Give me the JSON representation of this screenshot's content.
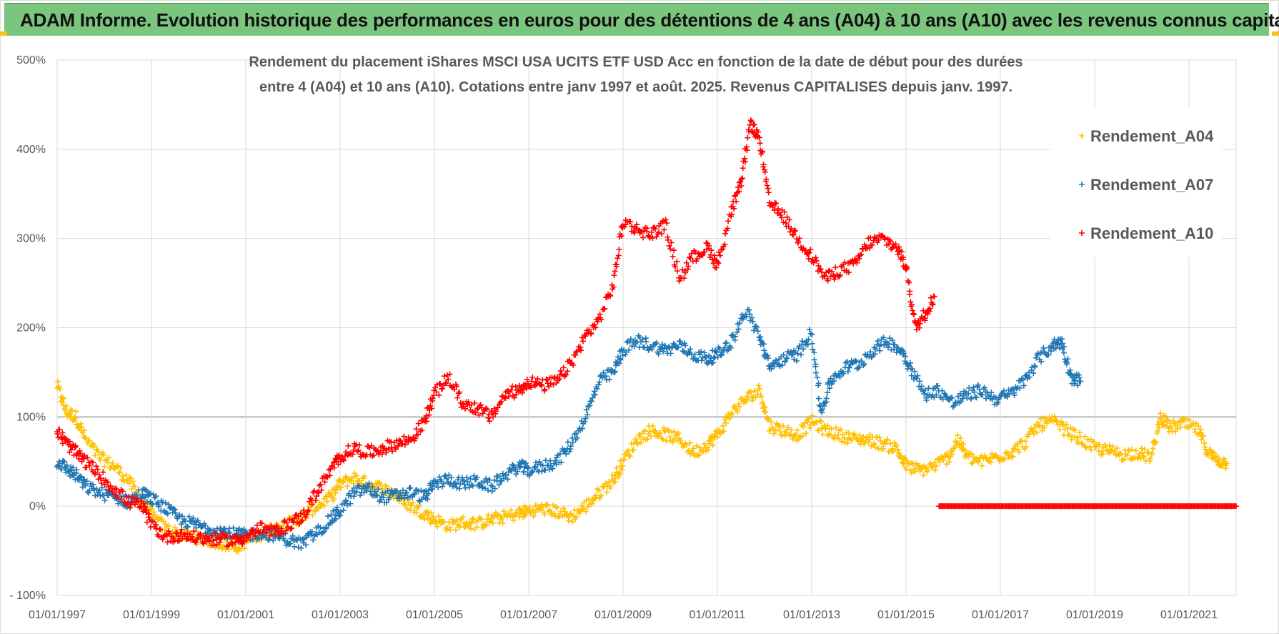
{
  "header": {
    "banner_title": "ADAM Informe. Evolution historique des performances en euros pour des détentions de 4 ans (A04) à 10 ans (A10) avec les revenus connus capitalisés"
  },
  "chart_data": {
    "type": "scatter",
    "title_lines": [
      "Rendement du placement iShares MSCI USA UCITS ETF USD Acc en fonction de la date de début pour des durées",
      "entre 4 (A04) et 10 ans (A10).  Cotations entre janv 1997 et août. 2025. Revenus CAPITALISES depuis janv. 1997."
    ],
    "xlabel": "",
    "ylabel": "",
    "x_ticks": [
      "01/01/1997",
      "01/01/1999",
      "01/01/2001",
      "01/01/2003",
      "01/01/2005",
      "01/01/2007",
      "01/01/2009",
      "01/01/2011",
      "01/01/2013",
      "01/01/2015",
      "01/01/2017",
      "01/01/2019",
      "01/01/2021"
    ],
    "y_ticks": [
      "- 100%",
      "0%",
      "100%",
      "200%",
      "300%",
      "400%",
      "500%"
    ],
    "xlim": [
      1997.0,
      2022.0
    ],
    "ylim": [
      -100,
      500
    ],
    "grid": true,
    "legend_position": "right",
    "marker": "+",
    "series": [
      {
        "name": "Rendement_A04",
        "color": "#ffc000",
        "points": [
          [
            1997.0,
            135
          ],
          [
            1997.2,
            105
          ],
          [
            1997.4,
            100
          ],
          [
            1997.6,
            75
          ],
          [
            1997.9,
            55
          ],
          [
            1998.2,
            45
          ],
          [
            1998.5,
            30
          ],
          [
            1998.8,
            5
          ],
          [
            1999.0,
            -10
          ],
          [
            1999.3,
            -25
          ],
          [
            1999.6,
            -32
          ],
          [
            1999.9,
            -35
          ],
          [
            2000.2,
            -38
          ],
          [
            2000.5,
            -42
          ],
          [
            2000.8,
            -45
          ],
          [
            2001.0,
            -40
          ],
          [
            2001.3,
            -32
          ],
          [
            2001.6,
            -25
          ],
          [
            2001.9,
            -20
          ],
          [
            2002.2,
            -12
          ],
          [
            2002.5,
            0
          ],
          [
            2002.8,
            10
          ],
          [
            2003.0,
            25
          ],
          [
            2003.3,
            32
          ],
          [
            2003.6,
            25
          ],
          [
            2003.9,
            20
          ],
          [
            2004.2,
            12
          ],
          [
            2004.5,
            0
          ],
          [
            2004.8,
            -8
          ],
          [
            2005.0,
            -15
          ],
          [
            2005.3,
            -22
          ],
          [
            2005.6,
            -18
          ],
          [
            2005.9,
            -20
          ],
          [
            2006.2,
            -15
          ],
          [
            2006.5,
            -12
          ],
          [
            2006.8,
            -8
          ],
          [
            2007.0,
            -5
          ],
          [
            2007.3,
            -3
          ],
          [
            2007.6,
            -6
          ],
          [
            2007.9,
            -12
          ],
          [
            2008.2,
            0
          ],
          [
            2008.5,
            15
          ],
          [
            2008.8,
            30
          ],
          [
            2009.0,
            50
          ],
          [
            2009.3,
            75
          ],
          [
            2009.6,
            85
          ],
          [
            2009.9,
            80
          ],
          [
            2010.2,
            75
          ],
          [
            2010.5,
            60
          ],
          [
            2010.8,
            70
          ],
          [
            2011.0,
            80
          ],
          [
            2011.3,
            105
          ],
          [
            2011.6,
            120
          ],
          [
            2011.9,
            130
          ],
          [
            2012.1,
            90
          ],
          [
            2012.4,
            85
          ],
          [
            2012.7,
            80
          ],
          [
            2013.0,
            95
          ],
          [
            2013.3,
            85
          ],
          [
            2013.6,
            80
          ],
          [
            2013.9,
            75
          ],
          [
            2014.2,
            75
          ],
          [
            2014.5,
            70
          ],
          [
            2014.8,
            65
          ],
          [
            2015.0,
            45
          ],
          [
            2015.3,
            40
          ],
          [
            2015.6,
            45
          ],
          [
            2015.9,
            55
          ],
          [
            2016.1,
            75
          ],
          [
            2016.3,
            55
          ],
          [
            2016.6,
            50
          ],
          [
            2016.9,
            55
          ],
          [
            2017.2,
            60
          ],
          [
            2017.5,
            70
          ],
          [
            2017.8,
            90
          ],
          [
            2018.1,
            95
          ],
          [
            2018.4,
            85
          ],
          [
            2018.7,
            75
          ],
          [
            2019.0,
            65
          ],
          [
            2019.3,
            62
          ],
          [
            2019.6,
            58
          ],
          [
            2019.9,
            60
          ],
          [
            2020.2,
            55
          ],
          [
            2020.4,
            100
          ],
          [
            2020.6,
            88
          ],
          [
            2020.9,
            92
          ],
          [
            2021.2,
            85
          ],
          [
            2021.4,
            60
          ],
          [
            2021.6,
            52
          ],
          [
            2021.8,
            48
          ]
        ]
      },
      {
        "name": "Rendement_A07",
        "color": "#1f77b4",
        "points": [
          [
            1997.0,
            50
          ],
          [
            1997.2,
            42
          ],
          [
            1997.4,
            35
          ],
          [
            1997.6,
            22
          ],
          [
            1997.9,
            15
          ],
          [
            1998.2,
            10
          ],
          [
            1998.5,
            5
          ],
          [
            1998.8,
            15
          ],
          [
            1999.0,
            8
          ],
          [
            1999.3,
            -2
          ],
          [
            1999.6,
            -15
          ],
          [
            1999.9,
            -20
          ],
          [
            2000.2,
            -25
          ],
          [
            2000.5,
            -28
          ],
          [
            2000.8,
            -32
          ],
          [
            2001.0,
            -33
          ],
          [
            2001.3,
            -30
          ],
          [
            2001.6,
            -32
          ],
          [
            2001.9,
            -38
          ],
          [
            2002.2,
            -42
          ],
          [
            2002.5,
            -30
          ],
          [
            2002.8,
            -15
          ],
          [
            2003.0,
            -5
          ],
          [
            2003.3,
            15
          ],
          [
            2003.6,
            20
          ],
          [
            2003.9,
            10
          ],
          [
            2004.2,
            12
          ],
          [
            2004.5,
            15
          ],
          [
            2004.8,
            10
          ],
          [
            2005.0,
            25
          ],
          [
            2005.3,
            30
          ],
          [
            2005.6,
            25
          ],
          [
            2005.9,
            28
          ],
          [
            2006.2,
            22
          ],
          [
            2006.5,
            35
          ],
          [
            2006.8,
            45
          ],
          [
            2007.0,
            40
          ],
          [
            2007.3,
            45
          ],
          [
            2007.6,
            50
          ],
          [
            2007.9,
            70
          ],
          [
            2008.2,
            100
          ],
          [
            2008.5,
            140
          ],
          [
            2008.8,
            150
          ],
          [
            2009.0,
            175
          ],
          [
            2009.3,
            185
          ],
          [
            2009.6,
            180
          ],
          [
            2009.9,
            175
          ],
          [
            2010.2,
            180
          ],
          [
            2010.5,
            170
          ],
          [
            2010.8,
            165
          ],
          [
            2011.0,
            170
          ],
          [
            2011.3,
            185
          ],
          [
            2011.6,
            220
          ],
          [
            2011.9,
            190
          ],
          [
            2012.1,
            155
          ],
          [
            2012.4,
            165
          ],
          [
            2012.7,
            170
          ],
          [
            2013.0,
            195
          ],
          [
            2013.2,
            105
          ],
          [
            2013.4,
            140
          ],
          [
            2013.7,
            155
          ],
          [
            2014.0,
            160
          ],
          [
            2014.3,
            175
          ],
          [
            2014.6,
            185
          ],
          [
            2014.9,
            175
          ],
          [
            2015.1,
            155
          ],
          [
            2015.4,
            125
          ],
          [
            2015.7,
            130
          ],
          [
            2016.0,
            115
          ],
          [
            2016.3,
            125
          ],
          [
            2016.6,
            130
          ],
          [
            2016.9,
            120
          ],
          [
            2017.2,
            125
          ],
          [
            2017.5,
            140
          ],
          [
            2017.8,
            165
          ],
          [
            2018.1,
            180
          ],
          [
            2018.3,
            185
          ],
          [
            2018.5,
            145
          ],
          [
            2018.7,
            140
          ]
        ]
      },
      {
        "name": "Rendement_A10",
        "color": "#ff0000",
        "points": [
          [
            1997.0,
            85
          ],
          [
            1997.2,
            70
          ],
          [
            1997.4,
            60
          ],
          [
            1997.6,
            50
          ],
          [
            1997.9,
            35
          ],
          [
            1998.2,
            20
          ],
          [
            1998.5,
            5
          ],
          [
            1998.8,
            0
          ],
          [
            1999.0,
            -20
          ],
          [
            1999.3,
            -35
          ],
          [
            1999.6,
            -32
          ],
          [
            1999.9,
            -35
          ],
          [
            2000.2,
            -37
          ],
          [
            2000.5,
            -38
          ],
          [
            2000.8,
            -38
          ],
          [
            2001.0,
            -35
          ],
          [
            2001.3,
            -25
          ],
          [
            2001.6,
            -30
          ],
          [
            2001.9,
            -20
          ],
          [
            2002.2,
            -12
          ],
          [
            2002.5,
            15
          ],
          [
            2002.8,
            40
          ],
          [
            2003.0,
            55
          ],
          [
            2003.3,
            65
          ],
          [
            2003.6,
            60
          ],
          [
            2003.9,
            65
          ],
          [
            2004.2,
            70
          ],
          [
            2004.5,
            75
          ],
          [
            2004.8,
            95
          ],
          [
            2005.0,
            125
          ],
          [
            2005.3,
            145
          ],
          [
            2005.6,
            115
          ],
          [
            2005.9,
            110
          ],
          [
            2006.2,
            100
          ],
          [
            2006.5,
            125
          ],
          [
            2006.8,
            130
          ],
          [
            2007.0,
            140
          ],
          [
            2007.3,
            135
          ],
          [
            2007.6,
            140
          ],
          [
            2007.9,
            160
          ],
          [
            2008.2,
            190
          ],
          [
            2008.5,
            210
          ],
          [
            2008.8,
            250
          ],
          [
            2009.0,
            320
          ],
          [
            2009.3,
            310
          ],
          [
            2009.6,
            305
          ],
          [
            2009.9,
            315
          ],
          [
            2010.2,
            255
          ],
          [
            2010.5,
            280
          ],
          [
            2010.8,
            290
          ],
          [
            2011.0,
            270
          ],
          [
            2011.3,
            330
          ],
          [
            2011.5,
            360
          ],
          [
            2011.7,
            430
          ],
          [
            2011.9,
            410
          ],
          [
            2012.1,
            340
          ],
          [
            2012.4,
            325
          ],
          [
            2012.7,
            300
          ],
          [
            2013.0,
            280
          ],
          [
            2013.3,
            255
          ],
          [
            2013.6,
            265
          ],
          [
            2013.9,
            270
          ],
          [
            2014.2,
            295
          ],
          [
            2014.5,
            300
          ],
          [
            2014.8,
            290
          ],
          [
            2015.0,
            270
          ],
          [
            2015.2,
            200
          ],
          [
            2015.4,
            215
          ],
          [
            2015.6,
            235
          ]
        ]
      },
      {
        "name": "",
        "color": "#ff0000",
        "flat_zero_from": 2015.7,
        "flat_zero_to": 2022.0
      }
    ]
  }
}
